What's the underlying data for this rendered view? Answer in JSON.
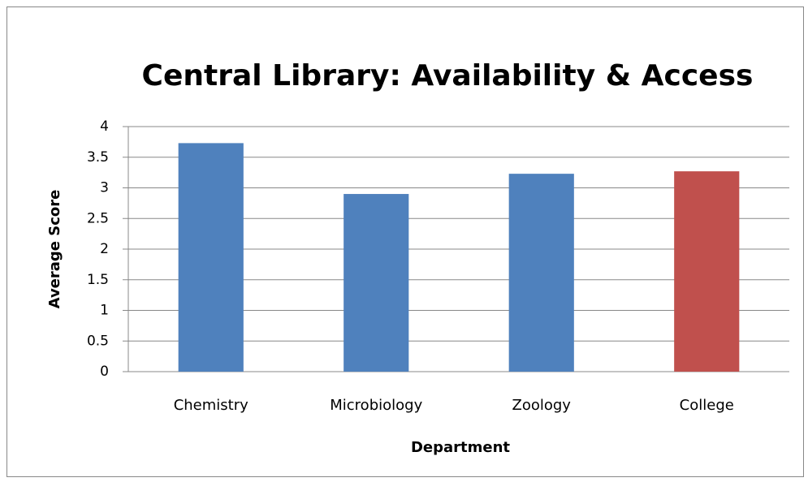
{
  "chart_data": {
    "type": "bar",
    "title": "Central Library: Availability & Access",
    "x_label": "Department",
    "y_label": "Average Score",
    "categories": [
      "Chemistry",
      "Microbiology",
      "Zoology",
      "College"
    ],
    "values": [
      3.73,
      2.9,
      3.23,
      3.27
    ],
    "colors": [
      "#4f81bd",
      "#4f81bd",
      "#4f81bd",
      "#c0504d"
    ],
    "ylim": [
      0,
      4
    ],
    "yticks": [
      0,
      0.5,
      1,
      1.5,
      2,
      2.5,
      3,
      3.5,
      4
    ],
    "grid": true
  }
}
